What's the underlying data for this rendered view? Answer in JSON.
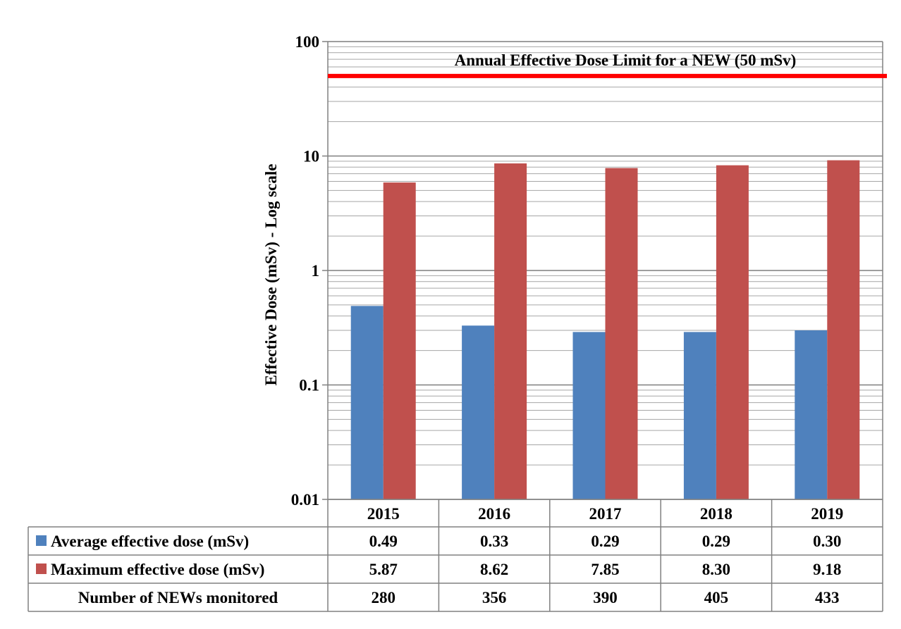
{
  "chart_data": {
    "type": "bar",
    "categories": [
      "2015",
      "2016",
      "2017",
      "2018",
      "2019"
    ],
    "series": [
      {
        "name": "Average effective dose (mSv)",
        "values": [
          0.49,
          0.33,
          0.29,
          0.29,
          0.3
        ],
        "color": "#4f81bd"
      },
      {
        "name": "Maximum effective dose (mSv)",
        "values": [
          5.87,
          8.62,
          7.85,
          8.3,
          9.18
        ],
        "color": "#c0504d"
      }
    ],
    "ylabel": "Effective Dose (mSv)  -  Log scale",
    "yscale": "log",
    "ylim": [
      0.01,
      100
    ],
    "yticks": [
      "100",
      "10",
      "1",
      "0.1",
      "0.01"
    ],
    "grid": true,
    "reference_line": {
      "value": 50,
      "label": "Annual Effective Dose Limit  for a NEW (50 mSv)",
      "color": "#ff0000"
    },
    "data_table": {
      "rows": [
        {
          "label": "Average effective dose (mSv)",
          "values": [
            "0.49",
            "0.33",
            "0.29",
            "0.29",
            "0.30"
          ],
          "swatch": "#4f81bd"
        },
        {
          "label": "Maximum effective dose (mSv)",
          "values": [
            "5.87",
            "8.62",
            "7.85",
            "8.30",
            "9.18"
          ],
          "swatch": "#c0504d"
        },
        {
          "label": "Number of NEWs monitored",
          "values": [
            "280",
            "356",
            "390",
            "405",
            "433"
          ],
          "swatch": ""
        }
      ]
    }
  }
}
